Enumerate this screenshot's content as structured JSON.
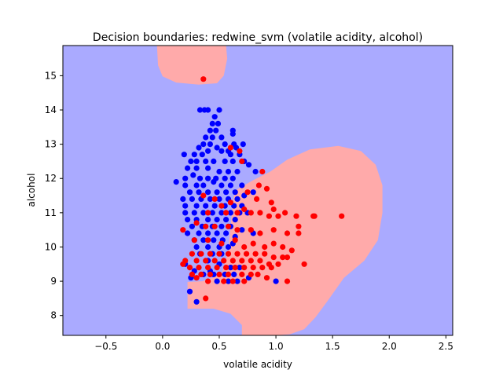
{
  "chart_data": {
    "type": "scatter",
    "title": "Decision boundaries: redwine_svm (volatile acidity, alcohol)",
    "xlabel": "volatile acidity",
    "ylabel": "alcohol",
    "xlim": [
      -0.88,
      2.56
    ],
    "ylim": [
      7.42,
      15.88
    ],
    "xticks": [
      -0.5,
      0.0,
      0.5,
      1.0,
      1.5,
      2.0,
      2.5
    ],
    "yticks": [
      8,
      9,
      10,
      11,
      12,
      13,
      14,
      15
    ],
    "xtick_labels": [
      "−0.5",
      "0.0",
      "0.5",
      "1.0",
      "1.5",
      "2.0",
      "2.5"
    ],
    "ytick_labels": [
      "8",
      "9",
      "10",
      "11",
      "12",
      "13",
      "14",
      "15"
    ],
    "grid": false,
    "legend": "none",
    "colors": {
      "region_blue": "#aaaaff",
      "region_red": "#ffaaaa",
      "point_blue": "#0000ff",
      "point_red": "#ff0000"
    },
    "regions": [
      {
        "class": "red",
        "polygon": [
          [
            -0.05,
            15.88
          ],
          [
            0.56,
            15.88
          ],
          [
            0.57,
            15.5
          ],
          [
            0.54,
            15.0
          ],
          [
            0.48,
            14.78
          ],
          [
            0.32,
            14.74
          ],
          [
            0.12,
            14.8
          ],
          [
            0.0,
            14.98
          ],
          [
            -0.04,
            15.3
          ]
        ]
      },
      {
        "class": "red",
        "polygon": [
          [
            0.64,
            11.65
          ],
          [
            0.8,
            11.95
          ],
          [
            0.95,
            12.2
          ],
          [
            1.1,
            12.55
          ],
          [
            1.3,
            12.85
          ],
          [
            1.55,
            12.95
          ],
          [
            1.75,
            12.8
          ],
          [
            1.88,
            12.4
          ],
          [
            1.94,
            11.8
          ],
          [
            1.94,
            11.0
          ],
          [
            1.9,
            10.2
          ],
          [
            1.78,
            9.6
          ],
          [
            1.6,
            9.1
          ],
          [
            1.45,
            8.4
          ],
          [
            1.35,
            7.95
          ],
          [
            1.25,
            7.6
          ],
          [
            1.12,
            7.45
          ],
          [
            0.98,
            7.42
          ],
          [
            0.7,
            7.42
          ],
          [
            0.7,
            7.72
          ],
          [
            0.6,
            8.05
          ],
          [
            0.45,
            8.2
          ],
          [
            0.22,
            8.2
          ],
          [
            0.22,
            8.98
          ],
          [
            0.35,
            9.0
          ],
          [
            0.52,
            9.2
          ],
          [
            0.58,
            9.9
          ],
          [
            0.6,
            10.6
          ],
          [
            0.62,
            11.3
          ]
        ]
      }
    ],
    "series": [
      {
        "class": "blue",
        "points": [
          [
            0.33,
            14.0
          ],
          [
            0.37,
            14.0
          ],
          [
            0.4,
            14.0
          ],
          [
            0.5,
            14.0
          ],
          [
            0.46,
            13.8
          ],
          [
            0.44,
            13.6
          ],
          [
            0.49,
            13.6
          ],
          [
            0.42,
            13.4
          ],
          [
            0.47,
            13.4
          ],
          [
            0.62,
            13.4
          ],
          [
            0.38,
            13.2
          ],
          [
            0.44,
            13.2
          ],
          [
            0.52,
            13.2
          ],
          [
            0.62,
            13.3
          ],
          [
            0.36,
            13.0
          ],
          [
            0.42,
            13.0
          ],
          [
            0.55,
            13.0
          ],
          [
            0.63,
            13.0
          ],
          [
            0.71,
            13.0
          ],
          [
            0.32,
            12.9
          ],
          [
            0.48,
            12.9
          ],
          [
            0.4,
            12.8
          ],
          [
            0.52,
            12.8
          ],
          [
            0.58,
            12.8
          ],
          [
            0.65,
            12.9
          ],
          [
            0.19,
            12.7
          ],
          [
            0.28,
            12.7
          ],
          [
            0.35,
            12.7
          ],
          [
            0.6,
            12.7
          ],
          [
            0.68,
            12.7
          ],
          [
            0.25,
            12.5
          ],
          [
            0.3,
            12.5
          ],
          [
            0.38,
            12.5
          ],
          [
            0.45,
            12.5
          ],
          [
            0.55,
            12.5
          ],
          [
            0.62,
            12.5
          ],
          [
            0.72,
            12.5
          ],
          [
            0.76,
            12.4
          ],
          [
            0.22,
            12.3
          ],
          [
            0.3,
            12.3
          ],
          [
            0.4,
            12.3
          ],
          [
            0.5,
            12.2
          ],
          [
            0.58,
            12.2
          ],
          [
            0.66,
            12.2
          ],
          [
            0.82,
            12.2
          ],
          [
            0.2,
            12.0
          ],
          [
            0.27,
            12.1
          ],
          [
            0.33,
            12.0
          ],
          [
            0.4,
            12.0
          ],
          [
            0.47,
            12.0
          ],
          [
            0.55,
            12.0
          ],
          [
            0.62,
            12.0
          ],
          [
            0.12,
            11.9
          ],
          [
            0.2,
            11.8
          ],
          [
            0.3,
            11.8
          ],
          [
            0.36,
            11.8
          ],
          [
            0.45,
            11.9
          ],
          [
            0.52,
            11.8
          ],
          [
            0.6,
            11.8
          ],
          [
            0.7,
            11.8
          ],
          [
            0.24,
            11.6
          ],
          [
            0.32,
            11.6
          ],
          [
            0.4,
            11.6
          ],
          [
            0.48,
            11.6
          ],
          [
            0.56,
            11.6
          ],
          [
            0.64,
            11.6
          ],
          [
            0.72,
            11.5
          ],
          [
            0.8,
            11.6
          ],
          [
            0.18,
            11.4
          ],
          [
            0.26,
            11.4
          ],
          [
            0.34,
            11.4
          ],
          [
            0.42,
            11.4
          ],
          [
            0.5,
            11.4
          ],
          [
            0.58,
            11.4
          ],
          [
            0.66,
            11.4
          ],
          [
            0.2,
            11.2
          ],
          [
            0.3,
            11.2
          ],
          [
            0.38,
            11.2
          ],
          [
            0.46,
            11.2
          ],
          [
            0.55,
            11.2
          ],
          [
            0.63,
            11.2
          ],
          [
            0.7,
            11.2
          ],
          [
            0.2,
            11.0
          ],
          [
            0.28,
            11.0
          ],
          [
            0.36,
            11.0
          ],
          [
            0.44,
            11.0
          ],
          [
            0.52,
            11.0
          ],
          [
            0.6,
            11.0
          ],
          [
            0.68,
            11.0
          ],
          [
            0.75,
            11.0
          ],
          [
            0.22,
            10.8
          ],
          [
            0.3,
            10.8
          ],
          [
            0.4,
            10.8
          ],
          [
            0.48,
            10.8
          ],
          [
            0.56,
            10.8
          ],
          [
            0.64,
            10.8
          ],
          [
            0.26,
            10.6
          ],
          [
            0.35,
            10.6
          ],
          [
            0.44,
            10.6
          ],
          [
            0.52,
            10.6
          ],
          [
            0.6,
            10.6
          ],
          [
            0.7,
            10.5
          ],
          [
            0.8,
            10.4
          ],
          [
            0.22,
            10.4
          ],
          [
            0.32,
            10.4
          ],
          [
            0.4,
            10.4
          ],
          [
            0.48,
            10.4
          ],
          [
            0.56,
            10.4
          ],
          [
            0.64,
            10.3
          ],
          [
            0.28,
            10.2
          ],
          [
            0.36,
            10.2
          ],
          [
            0.45,
            10.2
          ],
          [
            0.53,
            10.2
          ],
          [
            0.62,
            10.1
          ],
          [
            0.3,
            10.0
          ],
          [
            0.4,
            10.0
          ],
          [
            0.5,
            10.0
          ],
          [
            0.58,
            10.0
          ],
          [
            0.33,
            9.8
          ],
          [
            0.44,
            9.8
          ],
          [
            0.52,
            9.8
          ],
          [
            0.4,
            9.6
          ],
          [
            0.5,
            9.5
          ],
          [
            0.6,
            9.4
          ],
          [
            0.68,
            9.4
          ],
          [
            0.28,
            9.3
          ],
          [
            0.36,
            9.2
          ],
          [
            0.45,
            9.2
          ],
          [
            0.55,
            9.2
          ],
          [
            0.63,
            9.2
          ],
          [
            0.25,
            9.1
          ],
          [
            0.48,
            9.0
          ],
          [
            0.58,
            9.0
          ],
          [
            0.66,
            9.0
          ],
          [
            0.42,
            9.3
          ],
          [
            0.2,
            9.5
          ],
          [
            0.76,
            9.1
          ],
          [
            1.0,
            9.0
          ],
          [
            0.24,
            8.7
          ],
          [
            0.3,
            8.4
          ]
        ]
      },
      {
        "class": "red",
        "points": [
          [
            0.36,
            14.9
          ],
          [
            0.6,
            12.9
          ],
          [
            0.68,
            12.8
          ],
          [
            0.7,
            12.5
          ],
          [
            0.88,
            12.2
          ],
          [
            0.85,
            11.8
          ],
          [
            0.92,
            11.7
          ],
          [
            0.75,
            11.6
          ],
          [
            0.83,
            11.4
          ],
          [
            0.96,
            11.3
          ],
          [
            0.6,
            11.3
          ],
          [
            0.36,
            11.5
          ],
          [
            0.46,
            11.4
          ],
          [
            0.52,
            11.2
          ],
          [
            0.56,
            11.0
          ],
          [
            0.66,
            11.0
          ],
          [
            0.72,
            11.1
          ],
          [
            0.78,
            11.0
          ],
          [
            0.86,
            11.0
          ],
          [
            0.94,
            10.9
          ],
          [
            1.02,
            10.9
          ],
          [
            1.08,
            11.0
          ],
          [
            1.18,
            10.9
          ],
          [
            0.98,
            11.1
          ],
          [
            0.4,
            11.0
          ],
          [
            0.3,
            10.7
          ],
          [
            0.38,
            10.6
          ],
          [
            0.46,
            10.6
          ],
          [
            0.58,
            10.6
          ],
          [
            0.66,
            10.5
          ],
          [
            0.78,
            10.5
          ],
          [
            0.86,
            10.4
          ],
          [
            0.98,
            10.5
          ],
          [
            1.1,
            10.4
          ],
          [
            1.2,
            10.6
          ],
          [
            1.2,
            10.4
          ],
          [
            0.18,
            10.5
          ],
          [
            0.28,
            10.2
          ],
          [
            0.4,
            10.2
          ],
          [
            0.52,
            10.1
          ],
          [
            0.64,
            10.2
          ],
          [
            0.72,
            10.0
          ],
          [
            0.8,
            10.1
          ],
          [
            0.9,
            10.0
          ],
          [
            0.98,
            10.1
          ],
          [
            1.06,
            10.0
          ],
          [
            1.14,
            9.9
          ],
          [
            0.26,
            9.8
          ],
          [
            0.34,
            9.8
          ],
          [
            0.42,
            9.8
          ],
          [
            0.5,
            9.8
          ],
          [
            0.58,
            9.8
          ],
          [
            0.66,
            9.8
          ],
          [
            0.74,
            9.8
          ],
          [
            0.82,
            9.8
          ],
          [
            0.9,
            9.8
          ],
          [
            0.98,
            9.7
          ],
          [
            1.06,
            9.7
          ],
          [
            1.1,
            9.7
          ],
          [
            0.2,
            9.6
          ],
          [
            0.3,
            9.6
          ],
          [
            0.38,
            9.6
          ],
          [
            0.46,
            9.6
          ],
          [
            0.54,
            9.6
          ],
          [
            0.62,
            9.6
          ],
          [
            0.7,
            9.6
          ],
          [
            0.78,
            9.6
          ],
          [
            0.86,
            9.6
          ],
          [
            0.94,
            9.5
          ],
          [
            1.02,
            9.5
          ],
          [
            0.18,
            9.5
          ],
          [
            0.24,
            9.4
          ],
          [
            0.32,
            9.4
          ],
          [
            0.4,
            9.4
          ],
          [
            0.48,
            9.4
          ],
          [
            0.56,
            9.4
          ],
          [
            0.64,
            9.4
          ],
          [
            0.72,
            9.4
          ],
          [
            0.8,
            9.4
          ],
          [
            0.88,
            9.4
          ],
          [
            0.96,
            9.4
          ],
          [
            1.25,
            9.5
          ],
          [
            0.26,
            9.2
          ],
          [
            0.34,
            9.2
          ],
          [
            0.42,
            9.2
          ],
          [
            0.5,
            9.2
          ],
          [
            0.58,
            9.2
          ],
          [
            0.7,
            9.2
          ],
          [
            0.78,
            9.2
          ],
          [
            0.84,
            9.2
          ],
          [
            0.92,
            9.1
          ],
          [
            0.3,
            9.1
          ],
          [
            0.4,
            9.0
          ],
          [
            0.54,
            9.0
          ],
          [
            0.62,
            9.0
          ],
          [
            0.72,
            9.0
          ],
          [
            1.1,
            9.0
          ],
          [
            0.38,
            8.5
          ],
          [
            1.33,
            10.9
          ],
          [
            1.34,
            10.9
          ],
          [
            1.58,
            10.9
          ]
        ]
      }
    ]
  }
}
